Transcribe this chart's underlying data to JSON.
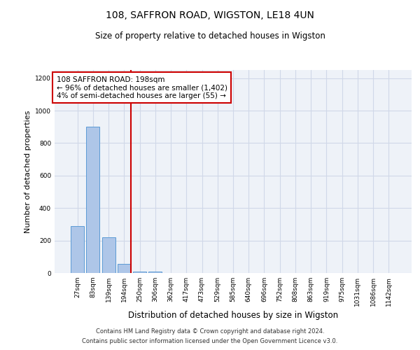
{
  "title1": "108, SAFFRON ROAD, WIGSTON, LE18 4UN",
  "title2": "Size of property relative to detached houses in Wigston",
  "xlabel": "Distribution of detached houses by size in Wigston",
  "ylabel": "Number of detached properties",
  "categories": [
    "27sqm",
    "83sqm",
    "139sqm",
    "194sqm",
    "250sqm",
    "306sqm",
    "362sqm",
    "417sqm",
    "473sqm",
    "529sqm",
    "585sqm",
    "640sqm",
    "696sqm",
    "752sqm",
    "808sqm",
    "863sqm",
    "919sqm",
    "975sqm",
    "1031sqm",
    "1086sqm",
    "1142sqm"
  ],
  "values": [
    290,
    900,
    220,
    55,
    10,
    10,
    0,
    0,
    0,
    0,
    0,
    0,
    0,
    0,
    0,
    0,
    0,
    0,
    0,
    0,
    0
  ],
  "bar_color": "#aec6e8",
  "bar_edge_color": "#5b9bd5",
  "red_line_index": 3,
  "ylim": [
    0,
    1250
  ],
  "yticks": [
    0,
    200,
    400,
    600,
    800,
    1000,
    1200
  ],
  "annotation_text": "108 SAFFRON ROAD: 198sqm\n← 96% of detached houses are smaller (1,402)\n4% of semi-detached houses are larger (55) →",
  "annotation_box_color": "#ffffff",
  "annotation_box_edge": "#cc0000",
  "red_line_color": "#cc0000",
  "footnote1": "Contains HM Land Registry data © Crown copyright and database right 2024.",
  "footnote2": "Contains public sector information licensed under the Open Government Licence v3.0.",
  "grid_color": "#d0d8e8",
  "background_color": "#eef2f8"
}
